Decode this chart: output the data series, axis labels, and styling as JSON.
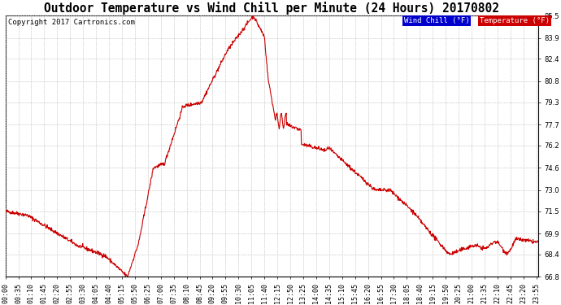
{
  "title": "Outdoor Temperature vs Wind Chill per Minute (24 Hours) 20170802",
  "copyright": "Copyright 2017 Cartronics.com",
  "legend_wind_chill": "Wind Chill (°F)",
  "legend_temperature": "Temperature (°F)",
  "ylim": [
    66.8,
    85.5
  ],
  "yticks": [
    66.8,
    68.4,
    69.9,
    71.5,
    73.0,
    74.6,
    76.2,
    77.7,
    79.3,
    80.8,
    82.4,
    83.9,
    85.5
  ],
  "line_color": "#cc0000",
  "wind_chill_bg": "#0000cc",
  "temperature_bg": "#cc0000",
  "legend_text_color": "#ffffff",
  "background_color": "#ffffff",
  "grid_color": "#c0c0c0",
  "title_fontsize": 10.5,
  "copyright_fontsize": 6.5,
  "tick_fontsize": 6,
  "xtick_step": 35,
  "total_minutes": 1440
}
